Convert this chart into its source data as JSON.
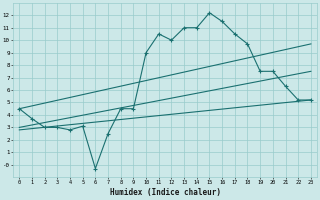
{
  "xlabel": "Humidex (Indice chaleur)",
  "background_color": "#cce8e8",
  "grid_color": "#99cccc",
  "line_color": "#1a7070",
  "xlim": [
    -0.5,
    23.5
  ],
  "ylim": [
    -1,
    13
  ],
  "xticks": [
    0,
    1,
    2,
    3,
    4,
    5,
    6,
    7,
    8,
    9,
    10,
    11,
    12,
    13,
    14,
    15,
    16,
    17,
    18,
    19,
    20,
    21,
    22,
    23
  ],
  "yticks": [
    0,
    1,
    2,
    3,
    4,
    5,
    6,
    7,
    8,
    9,
    10,
    11,
    12
  ],
  "line1_x": [
    0,
    1,
    2,
    3,
    4,
    5,
    6,
    7,
    8,
    9,
    10,
    11,
    12,
    13,
    14,
    15,
    16,
    17,
    18,
    19,
    20,
    21,
    22,
    23
  ],
  "line1_y": [
    4.5,
    3.7,
    3.0,
    3.0,
    2.8,
    3.1,
    -0.3,
    2.5,
    4.5,
    4.5,
    9.0,
    10.5,
    10.0,
    11.0,
    11.0,
    12.2,
    11.5,
    10.5,
    9.7,
    7.5,
    7.5,
    6.3,
    5.2,
    5.2
  ],
  "line2_x": [
    0,
    23
  ],
  "line2_y": [
    4.5,
    9.7
  ],
  "line3_x": [
    0,
    23
  ],
  "line3_y": [
    3.0,
    7.5
  ],
  "line4_x": [
    0,
    23
  ],
  "line4_y": [
    2.8,
    5.2
  ],
  "marker_indices": [
    0,
    1,
    2,
    3,
    4,
    5,
    6,
    7,
    8,
    9,
    10,
    11,
    12,
    13,
    14,
    15,
    16,
    17,
    18,
    19,
    20,
    21,
    22,
    23
  ]
}
